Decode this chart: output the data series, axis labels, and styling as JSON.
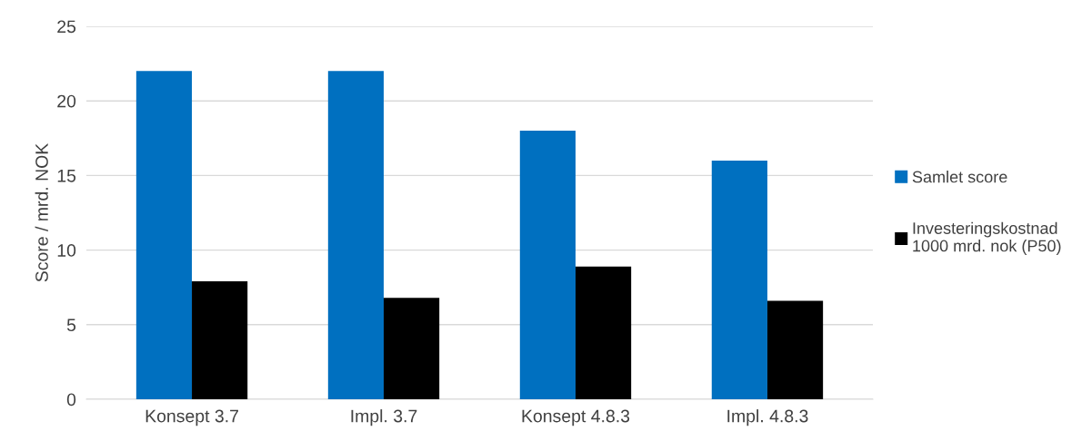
{
  "chart_data": {
    "type": "bar",
    "ylabel": "Score / mrd. NOK",
    "categories": [
      "Konsept 3.7",
      "Impl. 3.7",
      "Konsept 4.8.3",
      "Impl. 4.8.3"
    ],
    "series": [
      {
        "name": "Samlet score",
        "color": "#0070c0",
        "values": [
          22,
          22,
          18,
          16
        ]
      },
      {
        "name": "Investeringskostnad\n1000 mrd. nok (P50)",
        "color": "#000000",
        "values": [
          7.9,
          6.8,
          8.9,
          6.6
        ]
      }
    ],
    "ylim": [
      0,
      25
    ],
    "yticks": [
      0,
      5,
      10,
      15,
      20,
      25
    ],
    "grid": "y",
    "legend": "right"
  }
}
